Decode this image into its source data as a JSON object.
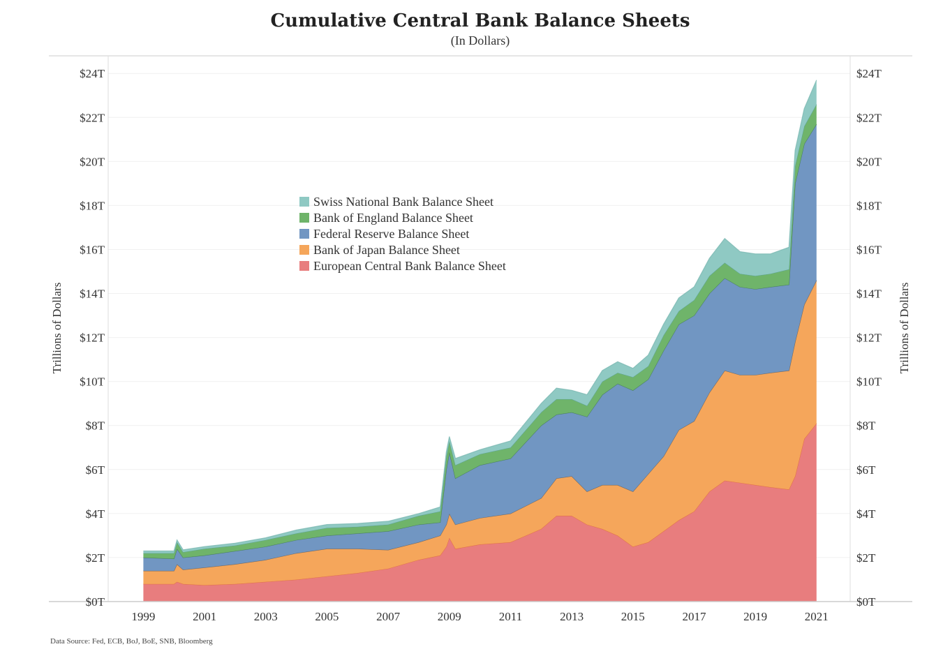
{
  "chart_data": {
    "type": "area",
    "stacked": true,
    "title": "Cumulative Central Bank Balance Sheets",
    "subtitle": "(In Dollars)",
    "ylabel": "Trillions of Dollars",
    "ylabel_right": "Trillions of Dollars",
    "source": "Data Source: Fed, ECB, BoJ, BoE, SNB, Bloomberg",
    "xlim": [
      1997.85,
      2022.1
    ],
    "ylim": [
      0,
      24.8
    ],
    "x_ticks": [
      1999,
      2001,
      2003,
      2005,
      2007,
      2009,
      2011,
      2013,
      2015,
      2017,
      2019,
      2021
    ],
    "x_tick_labels": [
      "1999",
      "2001",
      "2003",
      "2005",
      "2007",
      "2009",
      "2011",
      "2013",
      "2015",
      "2017",
      "2019",
      "2021"
    ],
    "y_ticks": [
      0,
      2,
      4,
      6,
      8,
      10,
      12,
      14,
      16,
      18,
      20,
      22,
      24
    ],
    "y_tick_labels": [
      "$0T",
      "$2T",
      "$4T",
      "$6T",
      "$8T",
      "$10T",
      "$12T",
      "$14T",
      "$16T",
      "$18T",
      "$20T",
      "$22T",
      "$24T"
    ],
    "grid": "horizontal",
    "legend_placement": "center-left",
    "x": [
      1999.0,
      2000.0,
      2000.1,
      2000.3,
      2001,
      2002,
      2003,
      2004,
      2005,
      2006,
      2007,
      2008,
      2008.7,
      2008.9,
      2009.0,
      2009.2,
      2010,
      2011,
      2012,
      2012.5,
      2013,
      2013.5,
      2014,
      2014.5,
      2015,
      2015.5,
      2016,
      2016.5,
      2017,
      2017.5,
      2018,
      2018.5,
      2019,
      2019.5,
      2020.1,
      2020.3,
      2020.6,
      2021.0
    ],
    "series": [
      {
        "name": "European Central Bank Balance Sheet",
        "color": "#e87d7e",
        "line": "#e0703a",
        "values": [
          0.8,
          0.8,
          0.9,
          0.8,
          0.75,
          0.8,
          0.9,
          1.0,
          1.15,
          1.3,
          1.5,
          1.9,
          2.1,
          2.5,
          2.9,
          2.4,
          2.6,
          2.7,
          3.3,
          3.9,
          3.9,
          3.5,
          3.3,
          3.0,
          2.5,
          2.7,
          3.2,
          3.7,
          4.1,
          5.0,
          5.5,
          5.4,
          5.3,
          5.2,
          5.1,
          5.7,
          7.4,
          8.1
        ]
      },
      {
        "name": "Bank of Japan Balance Sheet",
        "color": "#f5a65b",
        "line": "#4d5a6a",
        "values": [
          0.6,
          0.6,
          0.8,
          0.65,
          0.8,
          0.9,
          1.0,
          1.2,
          1.25,
          1.1,
          0.85,
          0.8,
          0.9,
          1.0,
          1.1,
          1.1,
          1.2,
          1.3,
          1.4,
          1.7,
          1.8,
          1.5,
          2.0,
          2.3,
          2.5,
          3.1,
          3.4,
          4.1,
          4.1,
          4.5,
          5.0,
          4.9,
          5.0,
          5.2,
          5.4,
          6.1,
          6.1,
          6.5
        ]
      },
      {
        "name": "Federal Reserve Balance Sheet",
        "color": "#7196c2",
        "line": "#3e7a44",
        "values": [
          0.6,
          0.55,
          0.7,
          0.55,
          0.55,
          0.6,
          0.6,
          0.6,
          0.6,
          0.7,
          0.85,
          0.8,
          0.6,
          2.5,
          2.8,
          2.1,
          2.4,
          2.5,
          3.3,
          2.9,
          2.9,
          3.4,
          4.1,
          4.6,
          4.6,
          4.3,
          4.8,
          4.8,
          4.8,
          4.5,
          4.2,
          4.0,
          3.9,
          3.9,
          3.9,
          7.2,
          7.3,
          7.1
        ]
      },
      {
        "name": "Bank of England Balance Sheet",
        "color": "#6fb46a",
        "line": "#5aa19b",
        "values": [
          0.2,
          0.25,
          0.3,
          0.25,
          0.3,
          0.25,
          0.3,
          0.3,
          0.35,
          0.3,
          0.3,
          0.4,
          0.5,
          0.6,
          0.5,
          0.6,
          0.5,
          0.5,
          0.6,
          0.7,
          0.6,
          0.5,
          0.6,
          0.5,
          0.6,
          0.6,
          0.7,
          0.6,
          0.7,
          0.8,
          0.7,
          0.6,
          0.6,
          0.6,
          0.7,
          0.8,
          0.8,
          0.9
        ]
      },
      {
        "name": "Swiss National Bank Balance Sheet",
        "color": "#8fc9c3",
        "line": "#7ab8b2",
        "values": [
          0.1,
          0.1,
          0.1,
          0.1,
          0.1,
          0.1,
          0.1,
          0.15,
          0.15,
          0.15,
          0.15,
          0.1,
          0.2,
          0.2,
          0.2,
          0.3,
          0.2,
          0.3,
          0.4,
          0.5,
          0.4,
          0.5,
          0.5,
          0.5,
          0.4,
          0.5,
          0.5,
          0.6,
          0.6,
          0.8,
          1.1,
          1.0,
          1.0,
          0.9,
          1.0,
          0.7,
          0.8,
          1.1
        ]
      }
    ]
  }
}
